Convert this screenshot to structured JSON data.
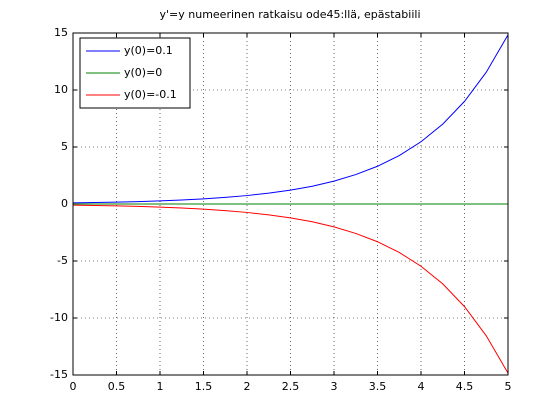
{
  "chart_data": {
    "type": "line",
    "title": "y'=y numeerinen ratkaisu ode45:llä, epästabiili",
    "x": [
      0,
      0.25,
      0.5,
      0.75,
      1,
      1.25,
      1.5,
      1.75,
      2,
      2.25,
      2.5,
      2.75,
      3,
      3.25,
      3.5,
      3.75,
      4,
      4.25,
      4.5,
      4.75,
      5
    ],
    "series": [
      {
        "name": "y(0)=0.1",
        "color": "#0000ff",
        "values": [
          0.1,
          0.13,
          0.16,
          0.21,
          0.27,
          0.35,
          0.45,
          0.58,
          0.74,
          0.95,
          1.22,
          1.56,
          2.01,
          2.58,
          3.31,
          4.25,
          5.46,
          7.01,
          9.0,
          11.56,
          14.84
        ]
      },
      {
        "name": "y(0)=0",
        "color": "#008000",
        "values": [
          0,
          0,
          0,
          0,
          0,
          0,
          0,
          0,
          0,
          0,
          0,
          0,
          0,
          0,
          0,
          0,
          0,
          0,
          0,
          0,
          0
        ]
      },
      {
        "name": "y(0)=-0.1",
        "color": "#ff0000",
        "values": [
          -0.1,
          -0.13,
          -0.16,
          -0.21,
          -0.27,
          -0.35,
          -0.45,
          -0.58,
          -0.74,
          -0.95,
          -1.22,
          -1.56,
          -2.01,
          -2.58,
          -3.31,
          -4.25,
          -5.46,
          -7.01,
          -9.0,
          -11.56,
          -14.84
        ]
      }
    ],
    "xlim": [
      0,
      5
    ],
    "xticks": [
      0,
      0.5,
      1,
      1.5,
      2,
      2.5,
      3,
      3.5,
      4,
      4.5,
      5
    ],
    "ylim": [
      -15,
      15
    ],
    "yticks": [
      -15,
      -10,
      -5,
      0,
      5,
      10,
      15
    ],
    "grid": true,
    "legend": "top-left"
  }
}
